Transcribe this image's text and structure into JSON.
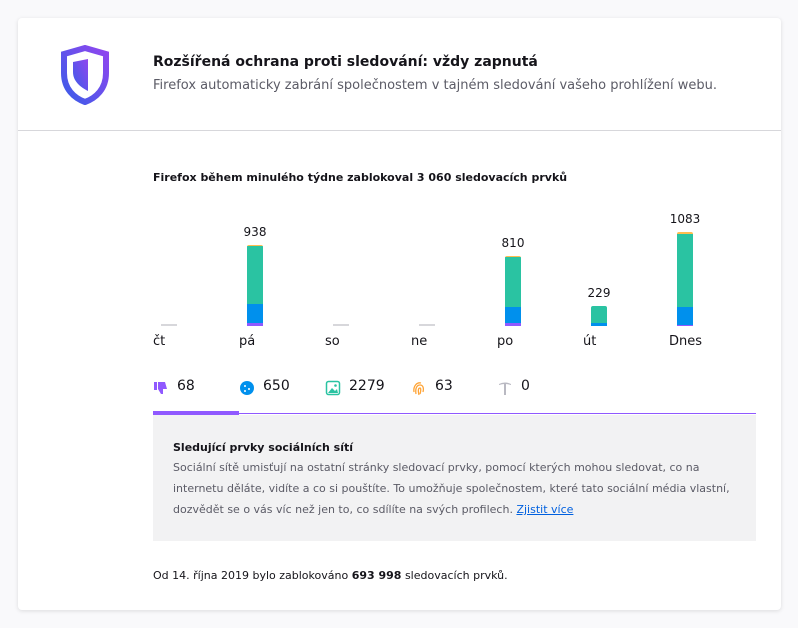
{
  "header": {
    "title": "Rozšířená ochrana proti sledování: vždy zapnutá",
    "subtitle": "Firefox automaticky zabrání společnostem v tajném sledování vašeho prohlížení webu."
  },
  "chart_data": {
    "type": "bar",
    "stacked": true,
    "title": "Firefox během minulého týdne zablokoval 3 060 sledovacích prvků",
    "categories": [
      "čt",
      "pá",
      "so",
      "ne",
      "po",
      "út",
      "Dnes"
    ],
    "totals": [
      0,
      938,
      0,
      0,
      810,
      229,
      1083
    ],
    "series": [
      {
        "name": "social",
        "color": "#9059ff",
        "values": [
          0,
          30,
          0,
          0,
          30,
          0,
          8
        ]
      },
      {
        "name": "cookies",
        "color": "#0090ed",
        "values": [
          0,
          220,
          0,
          0,
          190,
          30,
          210
        ]
      },
      {
        "name": "content",
        "color": "#2ac3a2",
        "values": [
          0,
          670,
          0,
          0,
          570,
          199,
          840
        ]
      },
      {
        "name": "fingerprinters",
        "color": "#ffbd4f",
        "values": [
          0,
          18,
          0,
          0,
          20,
          0,
          25
        ]
      },
      {
        "name": "cryptominers",
        "color": "#b9b9c2",
        "values": [
          0,
          0,
          0,
          0,
          0,
          0,
          0
        ]
      }
    ],
    "ylim": [
      0,
      1083
    ]
  },
  "tabs": [
    {
      "icon": "thumbs-down-icon",
      "count": "68",
      "color": "#9059ff"
    },
    {
      "icon": "cookie-icon",
      "count": "650",
      "color": "#0090ed"
    },
    {
      "icon": "image-icon",
      "count": "2279",
      "color": "#2ac3a2"
    },
    {
      "icon": "fingerprint-icon",
      "count": "63",
      "color": "#ffa436"
    },
    {
      "icon": "pickaxe-icon",
      "count": "0",
      "color": "#b9b9c2"
    }
  ],
  "info": {
    "title": "Sledující prvky sociálních sítí",
    "text": "Sociální sítě umisťují na ostatní stránky sledovací prvky, pomocí kterých mohou sledovat, co na internetu děláte, vidíte a co si pouštíte. To umožňuje společnostem, které tato sociální média vlastní, dozvědět se o vás víc než jen to, co sdílíte na svých profilech.",
    "link": "Zjistit více"
  },
  "footer": {
    "prefix": "Od 14. října 2019 bylo zablokováno ",
    "count": "693 998",
    "suffix": " sledovacích prvků."
  }
}
